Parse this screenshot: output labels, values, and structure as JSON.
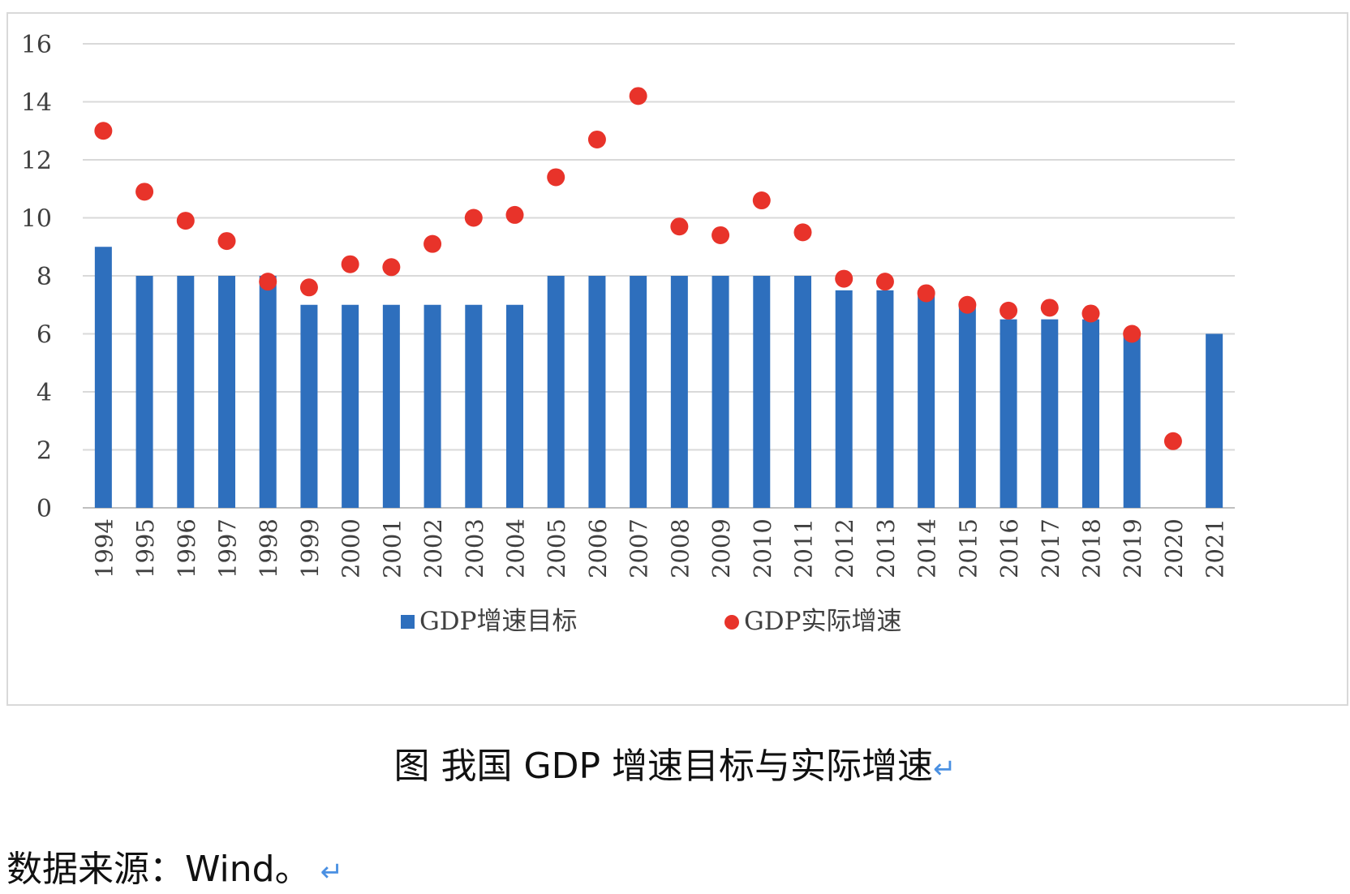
{
  "chart_data": {
    "type": "bar+scatter",
    "categories": [
      "1994",
      "1995",
      "1996",
      "1997",
      "1998",
      "1999",
      "2000",
      "2001",
      "2002",
      "2003",
      "2004",
      "2005",
      "2006",
      "2007",
      "2008",
      "2009",
      "2010",
      "2011",
      "2012",
      "2013",
      "2014",
      "2015",
      "2016",
      "2017",
      "2018",
      "2019",
      "2020",
      "2021"
    ],
    "series": [
      {
        "name": "GDP增速目标",
        "kind": "bar",
        "color": "#2e6fbd",
        "values": [
          9,
          8,
          8,
          8,
          8,
          7,
          7,
          7,
          7,
          7,
          7,
          8,
          8,
          8,
          8,
          8,
          8,
          8,
          7.5,
          7.5,
          7.5,
          7,
          6.5,
          6.5,
          6.5,
          6,
          null,
          6
        ]
      },
      {
        "name": "GDP实际增速",
        "kind": "scatter",
        "color": "#e8332a",
        "values": [
          13.0,
          10.9,
          9.9,
          9.2,
          7.8,
          7.6,
          8.4,
          8.3,
          9.1,
          10.0,
          10.1,
          11.4,
          12.7,
          14.2,
          9.7,
          9.4,
          10.6,
          9.5,
          7.9,
          7.8,
          7.4,
          7.0,
          6.8,
          6.9,
          6.7,
          6.0,
          2.3,
          null
        ]
      }
    ],
    "yticks": [
      "0",
      "2",
      "4",
      "6",
      "8",
      "10",
      "12",
      "14",
      "16"
    ],
    "ylim": [
      0,
      16
    ],
    "grid": true,
    "legend_position": "bottom"
  },
  "caption": {
    "text": "图  我国 GDP 增速目标与实际增速",
    "mark": "↵"
  },
  "source": {
    "text": "数据来源：Wind。",
    "mark": "↵"
  }
}
